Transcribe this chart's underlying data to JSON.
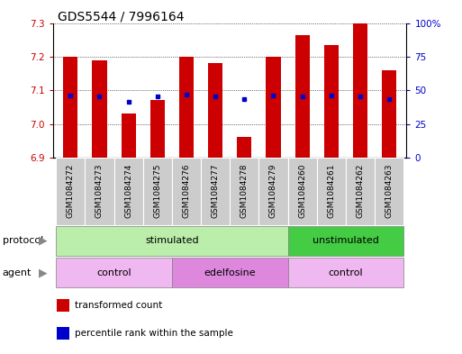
{
  "title": "GDS5544 / 7996164",
  "samples": [
    "GSM1084272",
    "GSM1084273",
    "GSM1084274",
    "GSM1084275",
    "GSM1084276",
    "GSM1084277",
    "GSM1084278",
    "GSM1084279",
    "GSM1084260",
    "GSM1084261",
    "GSM1084262",
    "GSM1084263"
  ],
  "bar_values": [
    7.2,
    7.19,
    7.03,
    7.07,
    7.2,
    7.18,
    6.96,
    7.2,
    7.265,
    7.235,
    7.3,
    7.16
  ],
  "dot_values": [
    7.085,
    7.083,
    7.065,
    7.083,
    7.088,
    7.083,
    7.073,
    7.085,
    7.083,
    7.085,
    7.083,
    7.073
  ],
  "ymin": 6.9,
  "ymax": 7.3,
  "yticks": [
    6.9,
    7.0,
    7.1,
    7.2,
    7.3
  ],
  "right_ytick_labels": [
    "0",
    "25",
    "50",
    "75",
    "100%"
  ],
  "right_yticks_pct": [
    0,
    25,
    50,
    75,
    100
  ],
  "bar_color": "#cc0000",
  "dot_color": "#0000cc",
  "bar_width": 0.5,
  "protocol_groups": [
    {
      "label": "stimulated",
      "start": 0,
      "end": 7,
      "color": "#bbeeaa"
    },
    {
      "label": "unstimulated",
      "start": 8,
      "end": 11,
      "color": "#44cc44"
    }
  ],
  "agent_groups": [
    {
      "label": "control",
      "start": 0,
      "end": 3,
      "color": "#f0b8f0"
    },
    {
      "label": "edelfosine",
      "start": 4,
      "end": 7,
      "color": "#dd88dd"
    },
    {
      "label": "control",
      "start": 8,
      "end": 11,
      "color": "#f0b8f0"
    }
  ],
  "legend_items": [
    {
      "label": "transformed count",
      "color": "#cc0000"
    },
    {
      "label": "percentile rank within the sample",
      "color": "#0000cc"
    }
  ],
  "title_fontsize": 10,
  "tick_fontsize": 7.5,
  "label_fontsize": 8,
  "sample_fontsize": 6.5,
  "group_label_color": "#bbbbbb"
}
